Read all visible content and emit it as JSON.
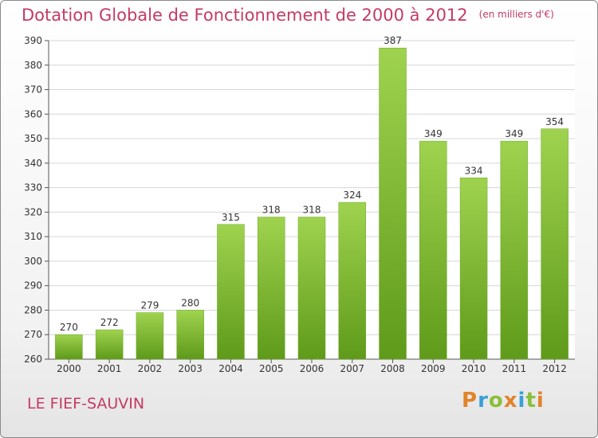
{
  "chart_data": {
    "type": "bar",
    "title": "Dotation Globale de Fonctionnement de 2000 à 2012",
    "unit_note": "(en milliers d'€)",
    "categories": [
      "2000",
      "2001",
      "2002",
      "2003",
      "2004",
      "2005",
      "2006",
      "2007",
      "2008",
      "2009",
      "2010",
      "2011",
      "2012"
    ],
    "values": [
      270,
      272,
      279,
      280,
      315,
      318,
      318,
      324,
      387,
      349,
      334,
      349,
      354
    ],
    "ylim": [
      260,
      390
    ],
    "yticks": [
      260,
      270,
      280,
      290,
      300,
      310,
      320,
      330,
      340,
      350,
      360,
      370,
      380,
      390
    ],
    "grid": true,
    "bar_color": "#7dbd2d",
    "bar_color_light": "#9fd34f",
    "bar_color_dark": "#5f9a1a"
  },
  "location": "LE FIEF-SAUVIN",
  "logo": {
    "letters": [
      "P",
      "r",
      "o",
      "x",
      "i",
      "t",
      "i"
    ],
    "colors": [
      "#e2832b",
      "#3a9fd8",
      "#8bbf3a",
      "#e2832b",
      "#3a9fd8",
      "#8bbf3a",
      "#e2832b"
    ]
  }
}
